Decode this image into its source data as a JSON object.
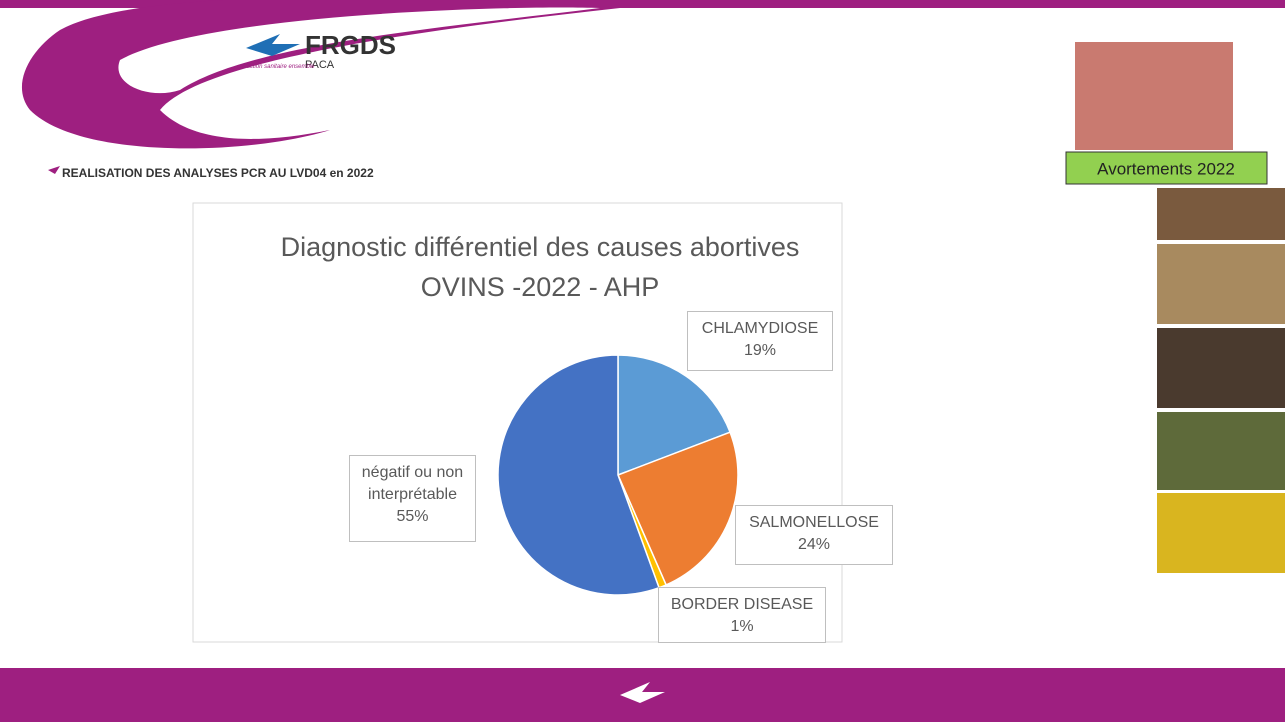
{
  "slide": {
    "logo_name": "FRGDS",
    "logo_region": "PACA",
    "logo_tagline": "L'action sanitaire ensemble",
    "heading": "REALISATION DES ANALYSES PCR AU LVD04 en 2022",
    "badge": "Avortements 2022"
  },
  "chart_data": {
    "type": "pie",
    "title": "Diagnostic différentiel des causes abortives",
    "subtitle": "OVINS -2022 - AHP",
    "categories": [
      "CHLAMYDIOSE",
      "SALMONELLOSE",
      "BORDER DISEASE",
      "négatif ou non interprétable"
    ],
    "values": [
      19,
      24,
      1,
      55
    ],
    "value_labels": [
      "19%",
      "24%",
      "1%",
      "55%"
    ],
    "colors": [
      "#5b9bd5",
      "#ed7d31",
      "#ffc000",
      "#4472c4"
    ]
  }
}
